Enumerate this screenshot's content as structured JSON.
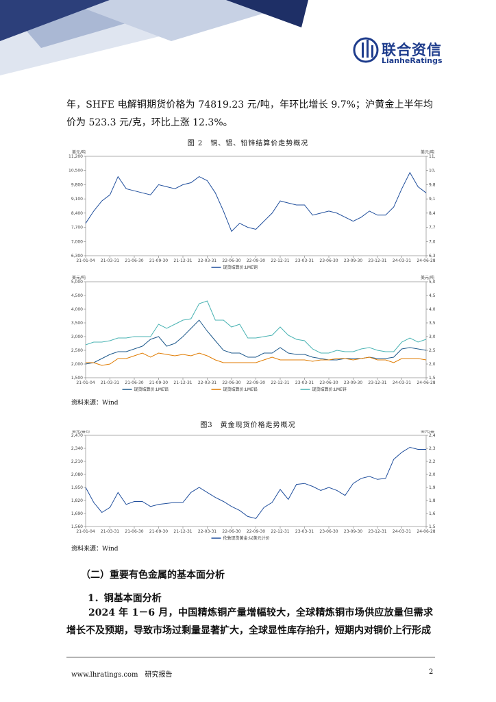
{
  "header": {
    "brand": "联合资信",
    "brand_en": "LianheRatings"
  },
  "paragraphs": [
    "年，SHFE 电解铜期货价格为 74819.23 元/吨，年环比增长 9.7%；沪黄金上半年均价为 523.3 元/克，环比上涨 12.3%。"
  ],
  "figures": [
    {
      "caption": "图 2　铜、铝、铅锌结算价走势概况",
      "source": "资料来源：Wind"
    },
    {
      "caption": "图3　黄金现货价格走势概况",
      "source": "资料来源：Wind"
    }
  ],
  "section_heading": "（二）重要有色金属的基本面分析",
  "subheading": "1．铜基本面分析",
  "body_paragraph": "2024 年 1－6 月，中国精炼铜产量增幅较大，全球精炼铜市场供应放量但需求增长不及预期，导致市场过剩量显著扩大，全球显性库存抬升，短期内对铜价上行形成",
  "footer": {
    "site": "www.lhratings.com　研究报告",
    "page": "2"
  },
  "chart_data": [
    {
      "type": "line",
      "unit": "美元/吨",
      "categories": [
        "21-01-04",
        null,
        null,
        "21-03-31",
        null,
        null,
        "21-06-30",
        null,
        null,
        "21-09-30",
        null,
        null,
        "21-12-31",
        null,
        null,
        "22-03-31",
        null,
        null,
        "22-06-30",
        null,
        null,
        "22-09-30",
        null,
        null,
        "22-12-31",
        null,
        null,
        "23-03-31",
        null,
        null,
        "23-06-30",
        null,
        null,
        "23-09-30",
        null,
        null,
        "23-12-31",
        null,
        null,
        "24-03-31",
        null,
        null,
        "24-06-28"
      ],
      "series": [
        {
          "name": "现货结算价:LME铜",
          "color": "#1f4e9c",
          "values": [
            7900,
            8500,
            9000,
            9300,
            10200,
            9600,
            9500,
            9400,
            9300,
            9800,
            9700,
            9600,
            9800,
            9900,
            10200,
            10000,
            9400,
            8500,
            7500,
            7900,
            7700,
            7600,
            8000,
            8400,
            9000,
            8900,
            8800,
            8800,
            8300,
            8400,
            8500,
            8400,
            8200,
            8000,
            8200,
            8500,
            8300,
            8300,
            8700,
            9600,
            10400,
            9700,
            9400
          ]
        }
      ],
      "ylim": [
        6300,
        11200
      ],
      "yticks": [
        {
          "value": 6300,
          "label": "6,300"
        },
        {
          "value": 7000,
          "label": "7,000"
        },
        {
          "value": 7700,
          "label": "7,700"
        },
        {
          "value": 8400,
          "label": "8,400"
        },
        {
          "value": 9100,
          "label": "9,100"
        },
        {
          "value": 9800,
          "label": "9,800"
        },
        {
          "value": 10500,
          "label": "10,500"
        },
        {
          "value": 11200,
          "label": "11,200"
        }
      ],
      "legend": "bottom"
    },
    {
      "type": "line",
      "unit": "美元/吨",
      "categories": [
        "21-01-04",
        null,
        null,
        "21-03-31",
        null,
        null,
        "21-06-30",
        null,
        null,
        "21-09-30",
        null,
        null,
        "21-12-31",
        null,
        null,
        "22-03-31",
        null,
        null,
        "22-06-30",
        null,
        null,
        "22-09-30",
        null,
        null,
        "22-12-31",
        null,
        null,
        "23-03-31",
        null,
        null,
        "23-06-30",
        null,
        null,
        "23-09-30",
        null,
        null,
        "23-12-31",
        null,
        null,
        "24-03-31",
        null,
        null,
        "24-06-28"
      ],
      "series": [
        {
          "name": "现货结算价:LME铝",
          "color": "#1f5a8c",
          "values": [
            2000,
            2050,
            2200,
            2350,
            2450,
            2450,
            2550,
            2650,
            2900,
            3000,
            2650,
            2750,
            3000,
            3300,
            3600,
            3200,
            2850,
            2500,
            2400,
            2400,
            2250,
            2250,
            2400,
            2400,
            2600,
            2400,
            2350,
            2350,
            2250,
            2200,
            2150,
            2150,
            2200,
            2200,
            2200,
            2250,
            2200,
            2200,
            2250,
            2550,
            2600,
            2550,
            2500
          ]
        },
        {
          "name": "现货结算价:LME铅",
          "color": "#e07b00",
          "values": [
            2050,
            2050,
            1950,
            2000,
            2200,
            2200,
            2300,
            2400,
            2250,
            2400,
            2350,
            2300,
            2350,
            2300,
            2400,
            2300,
            2150,
            2050,
            2050,
            2050,
            2050,
            2050,
            2150,
            2250,
            2150,
            2150,
            2150,
            2150,
            2100,
            2150,
            2150,
            2200,
            2200,
            2150,
            2200,
            2250,
            2150,
            2150,
            2050,
            2200,
            2200,
            2200,
            2150
          ]
        },
        {
          "name": "现货结算价:LME锌",
          "color": "#49b3b3",
          "values": [
            2700,
            2800,
            2800,
            2850,
            2950,
            2950,
            3000,
            3000,
            3000,
            3450,
            3300,
            3450,
            3600,
            3650,
            4200,
            4300,
            3600,
            3600,
            3350,
            3450,
            2950,
            2950,
            3000,
            3050,
            3350,
            3050,
            2900,
            2850,
            2550,
            2400,
            2400,
            2500,
            2450,
            2450,
            2550,
            2600,
            2500,
            2450,
            2450,
            2800,
            2950,
            2800,
            2900
          ]
        }
      ],
      "ylim": [
        1500,
        5000
      ],
      "yticks": [
        {
          "value": 1500,
          "label": "1,500"
        },
        {
          "value": 2000,
          "label": "2,000"
        },
        {
          "value": 2500,
          "label": "2,500"
        },
        {
          "value": 3000,
          "label": "3,000"
        },
        {
          "value": 3500,
          "label": "3,500"
        },
        {
          "value": 4000,
          "label": "4,000"
        },
        {
          "value": 4500,
          "label": "4,500"
        },
        {
          "value": 5000,
          "label": "5,000"
        }
      ],
      "legend": "bottom"
    },
    {
      "type": "line",
      "unit": "美元/盎司",
      "categories": [
        "21-01-04",
        null,
        null,
        "21-03-31",
        null,
        null,
        "21-06-30",
        null,
        null,
        "21-09-30",
        null,
        null,
        "21-12-31",
        null,
        null,
        "22-03-31",
        null,
        null,
        "22-06-30",
        null,
        null,
        "22-09-30",
        null,
        null,
        "22-12-31",
        null,
        null,
        "23-03-31",
        null,
        null,
        "23-06-30",
        null,
        null,
        "23-09-30",
        null,
        null,
        "23-12-31",
        null,
        null,
        "24-03-31",
        null,
        null,
        "24-06-28"
      ],
      "series": [
        {
          "name": "伦敦现货黄金:以美元计价",
          "color": "#1f4e9c",
          "values": [
            1950,
            1800,
            1700,
            1750,
            1900,
            1780,
            1810,
            1810,
            1760,
            1780,
            1790,
            1800,
            1800,
            1900,
            1950,
            1900,
            1850,
            1810,
            1760,
            1720,
            1660,
            1640,
            1750,
            1800,
            1930,
            1830,
            1980,
            1990,
            1960,
            1920,
            1950,
            1920,
            1870,
            1990,
            2040,
            2060,
            2030,
            2040,
            2230,
            2300,
            2350,
            2330,
            2330
          ]
        }
      ],
      "ylim": [
        1560,
        2470
      ],
      "yticks": [
        {
          "value": 1560,
          "label": "1,560"
        },
        {
          "value": 1690,
          "label": "1,690"
        },
        {
          "value": 1820,
          "label": "1,820"
        },
        {
          "value": 1950,
          "label": "1,950"
        },
        {
          "value": 2080,
          "label": "2,080"
        },
        {
          "value": 2210,
          "label": "2,210"
        },
        {
          "value": 2340,
          "label": "2,340"
        },
        {
          "value": 2470,
          "label": "2,470"
        }
      ],
      "legend": "bottom"
    }
  ]
}
